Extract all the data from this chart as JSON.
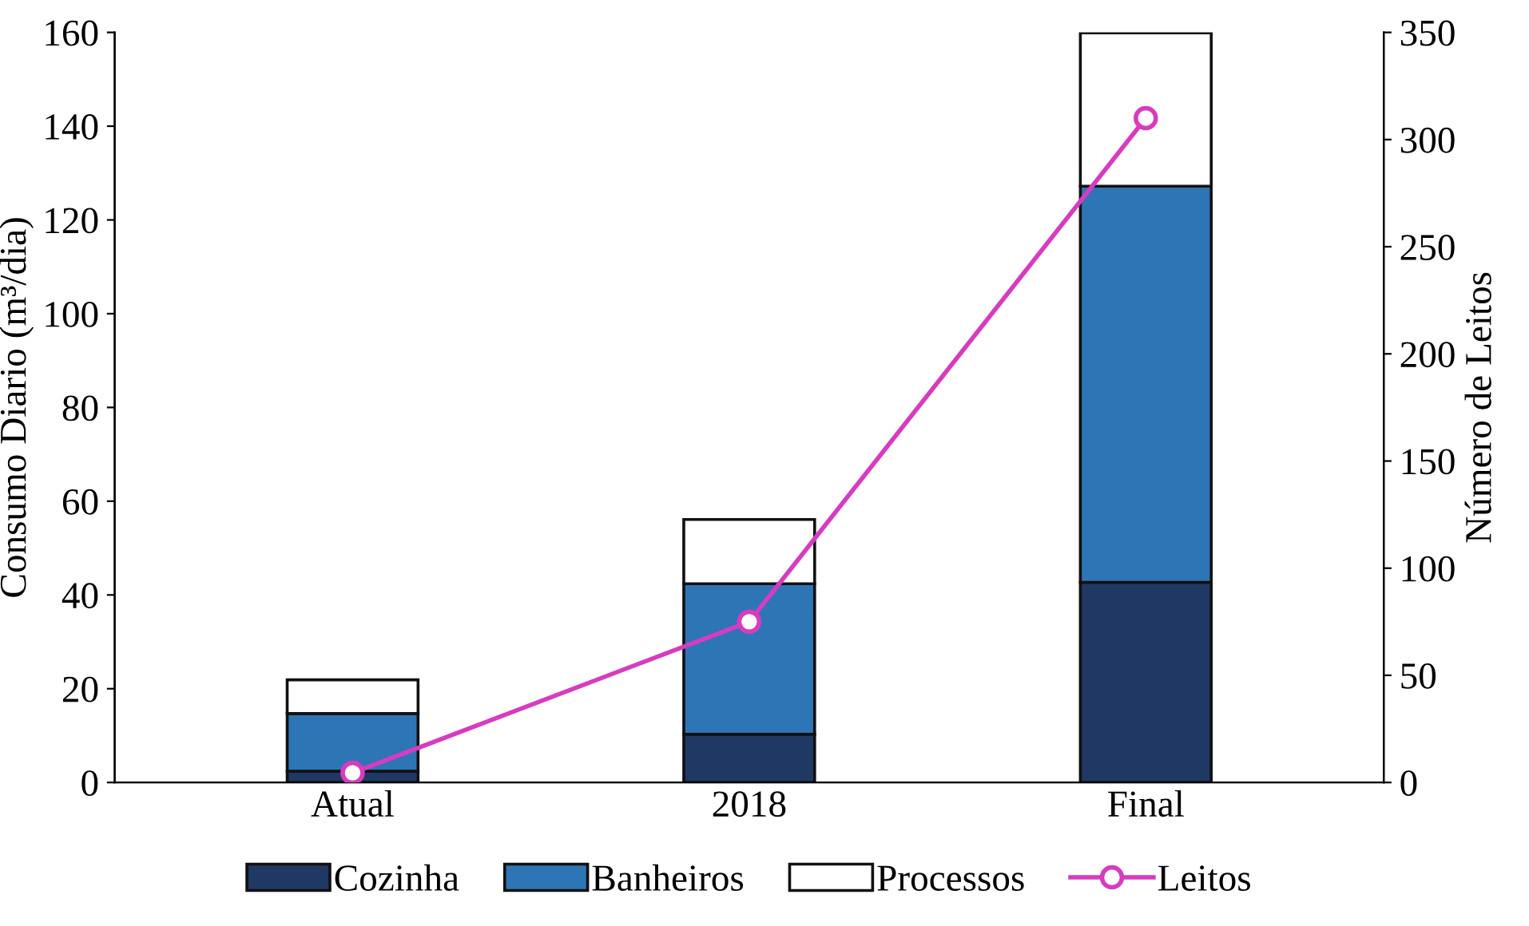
{
  "chart_data": {
    "type": "bar",
    "stacked": true,
    "categories": [
      "Atual",
      "2018",
      "Final"
    ],
    "ylabel": "Consumo Diario (m³/dia)",
    "y2label": "Número de Leitos",
    "ylim": [
      0,
      160
    ],
    "yticks": [
      0,
      20,
      40,
      60,
      80,
      100,
      120,
      140,
      160
    ],
    "y2lim": [
      0,
      350
    ],
    "y2ticks": [
      0,
      50,
      100,
      150,
      200,
      250,
      300,
      350
    ],
    "grid": false,
    "legend": "bottom",
    "series": [
      {
        "name": "Cozinha",
        "color": "#1f3864",
        "values": [
          2.4,
          10.3,
          42.7
        ]
      },
      {
        "name": "Banheiros",
        "color": "#2e75b6",
        "values": [
          12.3,
          32.1,
          84.5
        ]
      },
      {
        "name": "Processos",
        "color": "#ffffff",
        "values": [
          7.2,
          13.7,
          32.7
        ]
      },
      {
        "name": "Leitos",
        "type": "line",
        "axis": "y2",
        "color": "#d63cc0",
        "marker": "circle",
        "values": [
          4.5,
          75,
          310
        ]
      }
    ]
  }
}
